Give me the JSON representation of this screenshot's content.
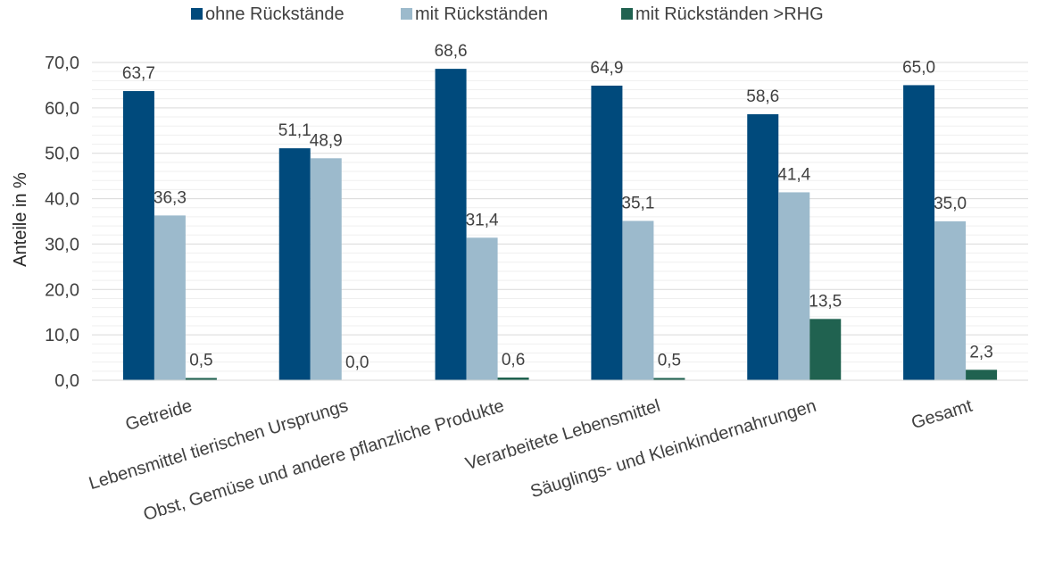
{
  "chart_data": {
    "type": "bar",
    "title": "",
    "xlabel": "",
    "ylabel": "Anteile in %",
    "ylim": [
      0,
      70
    ],
    "yticks": [
      "0,0",
      "10,0",
      "20,0",
      "30,0",
      "40,0",
      "50,0",
      "60,0",
      "70,0"
    ],
    "categories": [
      "Getreide",
      "Lebensmittel tierischen Ursprungs",
      "Obst, Gemüse und andere pflanzliche Produkte",
      "Verarbeitete Lebensmittel",
      "Säuglings- und Kleinkindernahrungen",
      "Gesamt"
    ],
    "series": [
      {
        "name": "ohne Rückstände",
        "color": "#004A7C",
        "values": [
          63.7,
          51.1,
          68.6,
          64.9,
          58.6,
          65.0
        ],
        "labels": [
          "63,7",
          "51,1",
          "68,6",
          "64,9",
          "58,6",
          "65,0"
        ]
      },
      {
        "name": "mit Rückständen",
        "color": "#9CBACC",
        "values": [
          36.3,
          48.9,
          31.4,
          35.1,
          41.4,
          35.0
        ],
        "labels": [
          "36,3",
          "48,9",
          "31,4",
          "35,1",
          "41,4",
          "35,0"
        ]
      },
      {
        "name": "mit Rückständen >RHG",
        "color": "#206250",
        "values": [
          0.5,
          0.0,
          0.6,
          0.5,
          13.5,
          2.3
        ],
        "labels": [
          "0,5",
          "0,0",
          "0,6",
          "0,5",
          "13,5",
          "2,3"
        ]
      }
    ],
    "legend": "top",
    "grid": true
  }
}
